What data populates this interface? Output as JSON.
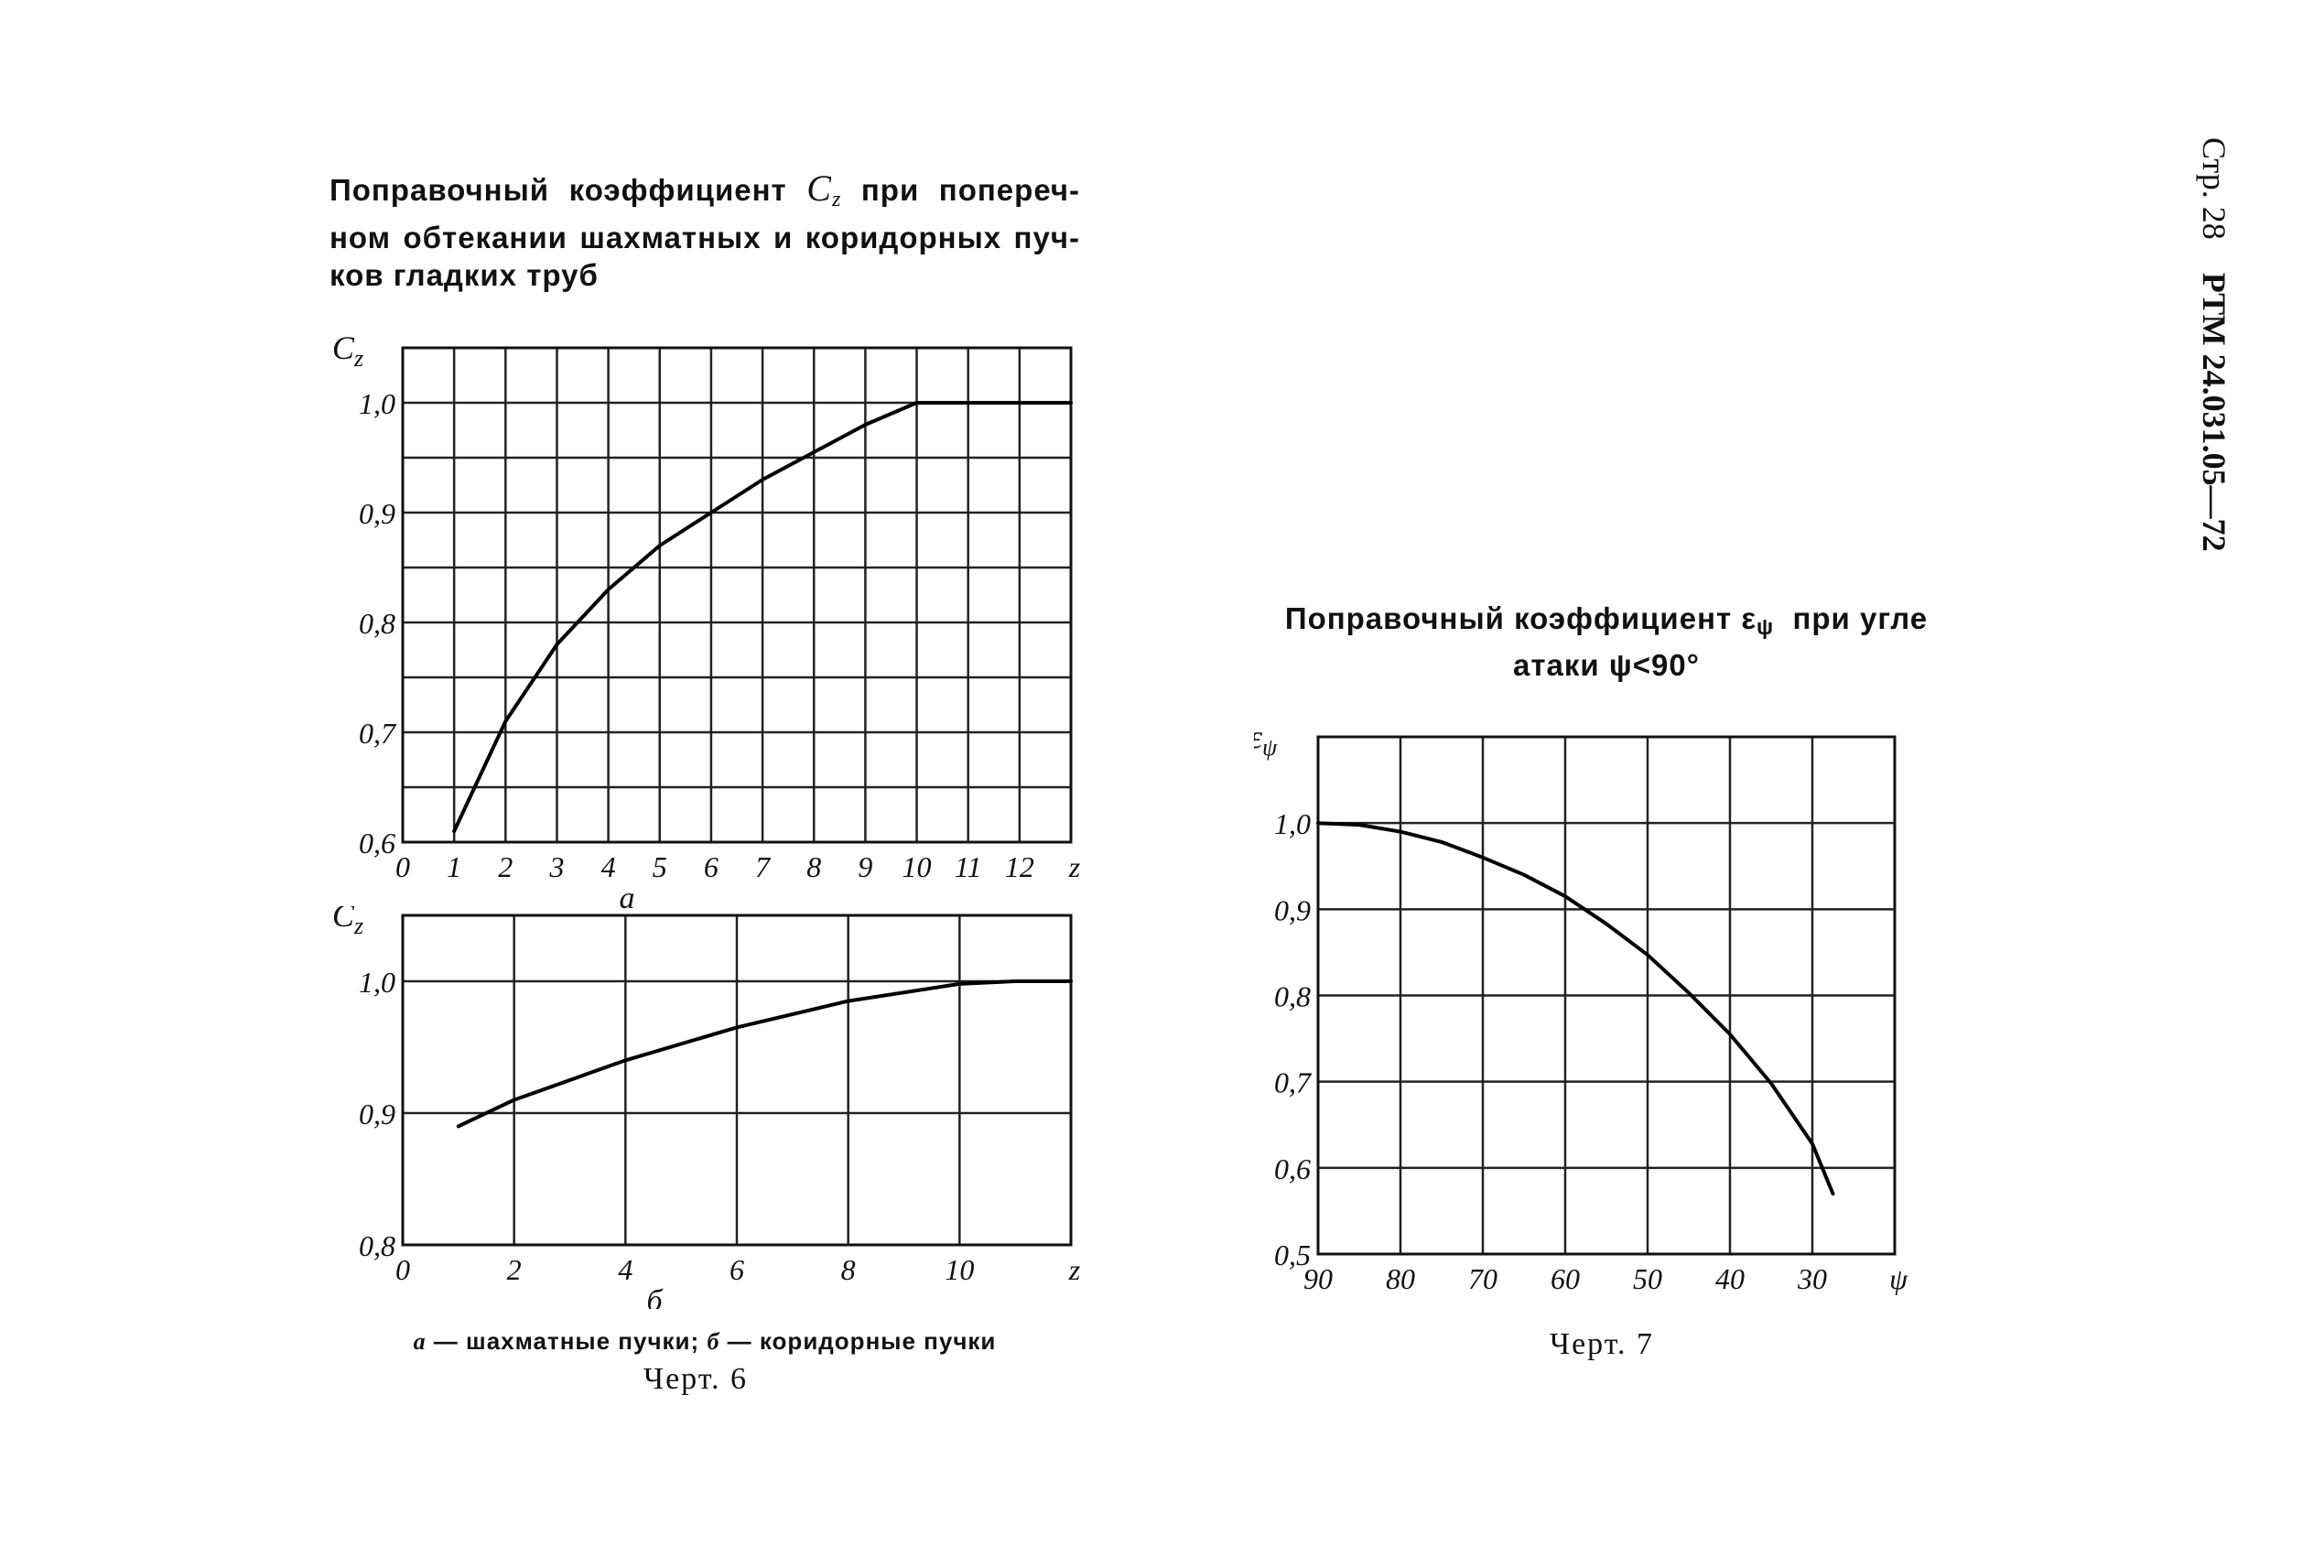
{
  "side_header": {
    "page": "Стр. 28",
    "doc": "РТМ 24.031.05—72"
  },
  "fig6": {
    "title_a": "Поправочный коэффициент",
    "title_sym": "C",
    "title_sub": "z",
    "title_b": "при попереч-ном обтекании шахматных и коридорных пуч-ков гладких труб",
    "legend_a_letter": "а",
    "legend_a_text": "— шахматные пучки;",
    "legend_b_letter": "б",
    "legend_b_text": "— коридорные пучки",
    "caption": "Черт. 6"
  },
  "fig7": {
    "title_line1": "Поправочный коэффициент ε",
    "title_sub": "ψ",
    "title_line1_end": "при угле",
    "title_line2": "атаки ψ<90°",
    "caption": "Черт. 7"
  },
  "chart_data": [
    {
      "id": "a",
      "type": "line",
      "panel_label": "а",
      "ylabel": "Cz",
      "xlabel_end": "z",
      "xlim": [
        0,
        13
      ],
      "ylim": [
        0.6,
        1.05
      ],
      "x_ticks": [
        "0",
        "1",
        "2",
        "3",
        "4",
        "5",
        "6",
        "7",
        "8",
        "9",
        "10",
        "11",
        "12"
      ],
      "y_ticks": [
        "0,6",
        "0,7",
        "0,8",
        "0,9",
        "1,0"
      ],
      "grid": true,
      "series": [
        {
          "x": [
            1,
            1.5,
            2,
            3,
            4,
            5,
            6,
            7,
            8,
            9,
            10,
            11,
            12,
            13
          ],
          "y": [
            0.61,
            0.66,
            0.71,
            0.78,
            0.83,
            0.87,
            0.9,
            0.93,
            0.955,
            0.98,
            1.0,
            1.0,
            1.0,
            1.0
          ]
        }
      ]
    },
    {
      "id": "b",
      "type": "line",
      "panel_label": "б",
      "ylabel": "Cz",
      "xlabel_end": "z",
      "xlim": [
        0,
        12
      ],
      "ylim": [
        0.8,
        1.05
      ],
      "x_ticks": [
        "0",
        "2",
        "4",
        "6",
        "8",
        "10"
      ],
      "y_ticks": [
        "0,8",
        "0,9",
        "1,0"
      ],
      "grid": true,
      "series": [
        {
          "x": [
            1,
            2,
            4,
            6,
            8,
            10,
            11,
            12
          ],
          "y": [
            0.89,
            0.91,
            0.94,
            0.965,
            0.985,
            0.998,
            1.0,
            1.0
          ]
        }
      ]
    },
    {
      "id": "c",
      "type": "line",
      "ylabel": "εψ",
      "xlabel_end": "ψ",
      "xlim": [
        90,
        20
      ],
      "ylim": [
        0.5,
        1.1
      ],
      "x_ticks": [
        "90",
        "80",
        "70",
        "60",
        "50",
        "40",
        "30"
      ],
      "y_ticks": [
        "0,5",
        "0,6",
        "0,7",
        "0,8",
        "0,9",
        "1,0"
      ],
      "grid": true,
      "series": [
        {
          "x": [
            90,
            85,
            80,
            75,
            70,
            65,
            60,
            55,
            50,
            45,
            40,
            35,
            30,
            27.5
          ],
          "y": [
            1.0,
            0.998,
            0.99,
            0.978,
            0.96,
            0.94,
            0.915,
            0.883,
            0.847,
            0.803,
            0.755,
            0.698,
            0.628,
            0.57
          ]
        }
      ]
    }
  ]
}
